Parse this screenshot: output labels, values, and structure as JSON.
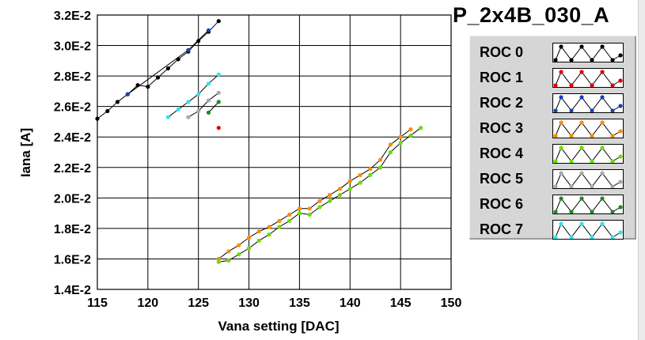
{
  "chart_data": {
    "type": "line",
    "title": "P_2x4B_030_A",
    "xlabel": "Vana setting [DAC]",
    "ylabel": "Iana [A]",
    "xlim": [
      115,
      150
    ],
    "ylim": [
      0.014,
      0.032
    ],
    "x_ticks": [
      "115",
      "120",
      "125",
      "130",
      "135",
      "140",
      "145",
      "150"
    ],
    "y_ticks": [
      "1.4E-2",
      "1.6E-2",
      "1.8E-2",
      "2.0E-2",
      "2.2E-2",
      "2.4E-2",
      "2.6E-2",
      "2.8E-2",
      "3.0E-2",
      "3.2E-2"
    ],
    "grid": true,
    "legend_position": "right",
    "series": [
      {
        "name": "ROC 0",
        "color": "#000000",
        "x": [
          115,
          116,
          117,
          118,
          119,
          120,
          121,
          122,
          123,
          124,
          125,
          126,
          127
        ],
        "y": [
          0.0252,
          0.0257,
          0.0263,
          0.0268,
          0.0274,
          0.0273,
          0.0279,
          0.0285,
          0.0291,
          0.0296,
          0.0303,
          0.0309,
          0.0316
        ]
      },
      {
        "name": "ROC 1",
        "color": "#e00000",
        "x": [
          127
        ],
        "y": [
          0.0246
        ]
      },
      {
        "name": "ROC 2",
        "color": "#1a3fbf",
        "x": [
          118,
          124,
          126
        ],
        "y": [
          0.0268,
          0.0297,
          0.031
        ]
      },
      {
        "name": "ROC 3",
        "color": "#ff8c00",
        "x": [
          127,
          128,
          129,
          130,
          131,
          132,
          133,
          134,
          135,
          136,
          137,
          138,
          139,
          140,
          141,
          142,
          143,
          144,
          145,
          146
        ],
        "y": [
          0.016,
          0.0165,
          0.0169,
          0.0174,
          0.0178,
          0.0181,
          0.0185,
          0.0189,
          0.0193,
          0.0193,
          0.0198,
          0.0202,
          0.0206,
          0.0211,
          0.0215,
          0.0219,
          0.0225,
          0.0235,
          0.024,
          0.0245
        ]
      },
      {
        "name": "ROC 4",
        "color": "#66e000",
        "x": [
          127,
          128,
          129,
          130,
          131,
          132,
          133,
          134,
          135,
          136,
          137,
          138,
          139,
          140,
          141,
          142,
          143,
          144,
          145,
          146,
          147
        ],
        "y": [
          0.0158,
          0.0159,
          0.0163,
          0.0167,
          0.0172,
          0.0176,
          0.0181,
          0.0185,
          0.019,
          0.0189,
          0.0194,
          0.0198,
          0.0202,
          0.0206,
          0.021,
          0.0215,
          0.022,
          0.023,
          0.0236,
          0.0241,
          0.0246
        ]
      },
      {
        "name": "ROC 5",
        "color": "#a8a8a8",
        "x": [
          124,
          125,
          126,
          127
        ],
        "y": [
          0.0253,
          0.0257,
          0.0264,
          0.0269
        ]
      },
      {
        "name": "ROC 6",
        "color": "#1f8a1f",
        "x": [
          126,
          127
        ],
        "y": [
          0.0256,
          0.0263
        ]
      },
      {
        "name": "ROC 7",
        "color": "#33e0f0",
        "x": [
          122,
          123,
          124,
          125,
          126,
          127
        ],
        "y": [
          0.0253,
          0.0258,
          0.0263,
          0.0268,
          0.0275,
          0.0281
        ]
      }
    ]
  }
}
